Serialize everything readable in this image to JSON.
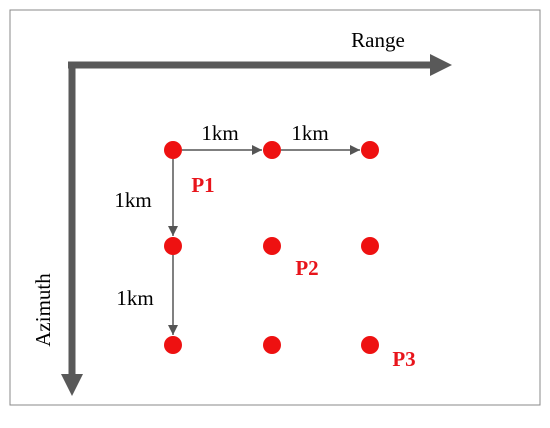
{
  "axes": {
    "range_label": "Range",
    "azimuth_label": "Azimuth"
  },
  "spacing_labels": [
    "1km",
    "1km",
    "1km",
    "1km"
  ],
  "point_labels": [
    "P1",
    "P2",
    "P3"
  ]
}
